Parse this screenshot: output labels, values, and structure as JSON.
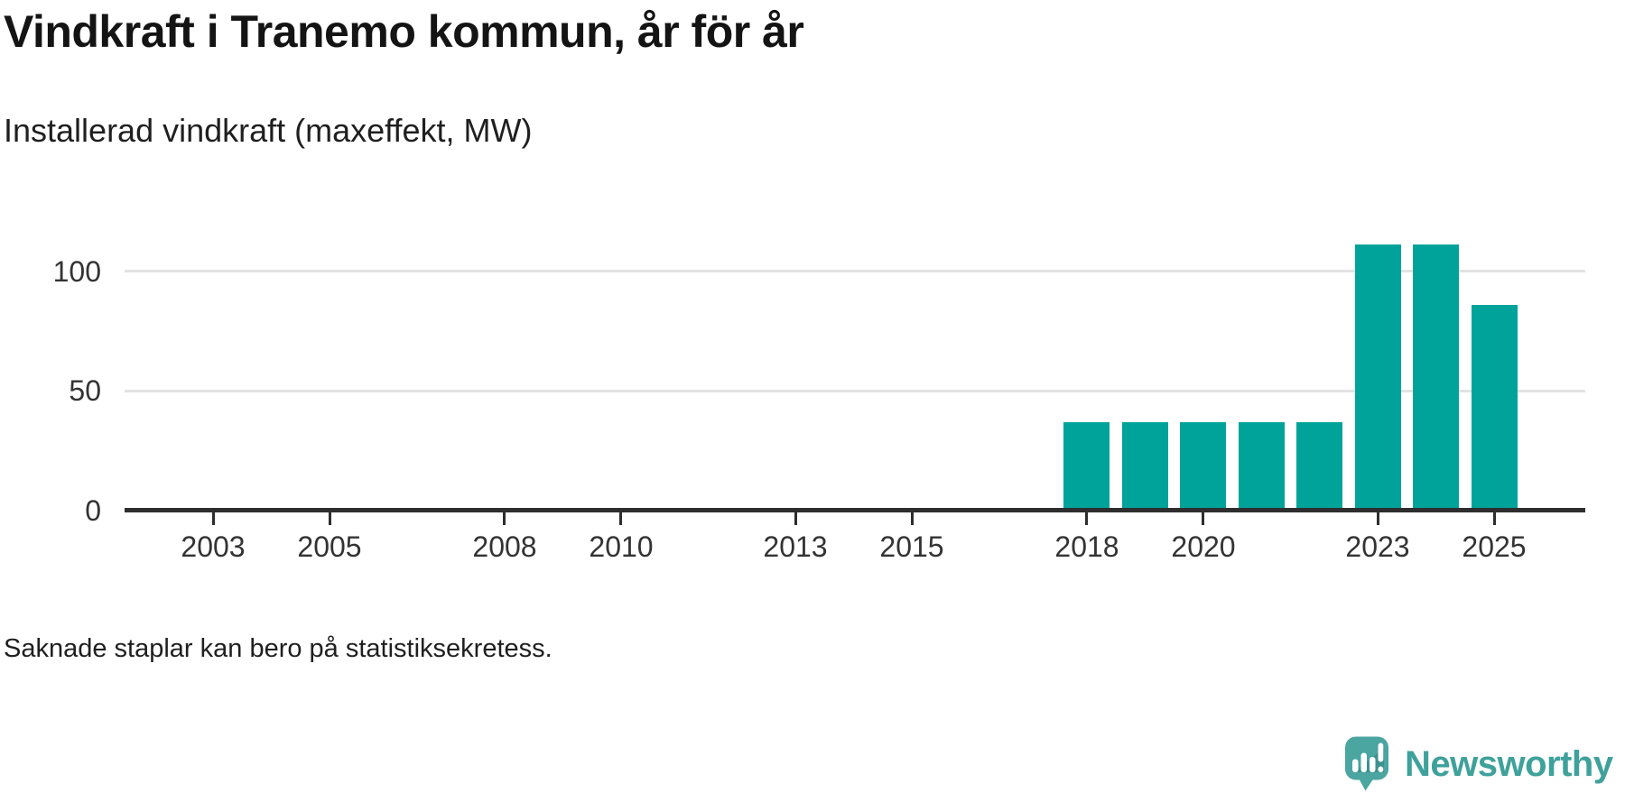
{
  "header": {
    "title": "Vindkraft i Tranemo kommun, år för år",
    "subtitle": "Installerad vindkraft (maxeffekt, MW)"
  },
  "footer": {
    "note": "Saknade staplar kan bero på statistiksekretess."
  },
  "branding": {
    "logo_text": "Newsworthy",
    "logo_text_color": "#3fa19b",
    "logo_bubble_color": "#4ba5a1",
    "icon": "newsworthy-bubble-chart-icon"
  },
  "chart_data": {
    "type": "bar",
    "title": "Vindkraft i Tranemo kommun, år för år",
    "subtitle": "Installerad vindkraft (maxeffekt, MW)",
    "unit": "MW",
    "x": [
      2018,
      2019,
      2020,
      2021,
      2022,
      2023,
      2024,
      2025
    ],
    "values": [
      36,
      36,
      36,
      36,
      36,
      110,
      110,
      85
    ],
    "x_axis": {
      "tick_years": [
        2003,
        2005,
        2008,
        2010,
        2013,
        2015,
        2018,
        2020,
        2023,
        2025
      ],
      "range": [
        2001.5,
        2026.5
      ]
    },
    "y_axis": {
      "ticks": [
        0,
        50,
        100
      ],
      "ylim": [
        0,
        125
      ],
      "label": ""
    },
    "grid": true,
    "legend": "none",
    "bar_color": "#00a39a",
    "gridline_color": "#e3e3e3",
    "axis_color": "#2e2e2e",
    "note": "Saknade staplar kan bero på statistiksekretess."
  }
}
